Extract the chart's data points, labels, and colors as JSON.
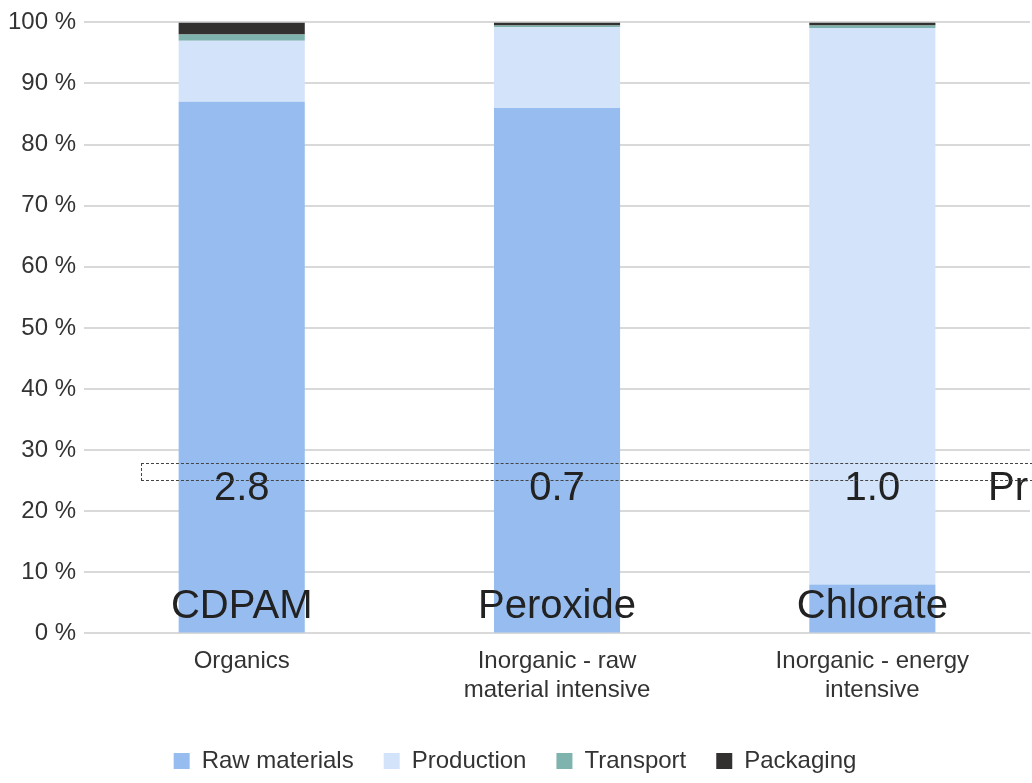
{
  "chart_data": {
    "type": "bar",
    "stacked": true,
    "categories": [
      "Organics",
      "Inorganic - raw material intensive",
      "Inorganic - energy intensive"
    ],
    "series": [
      {
        "name": "Raw materials",
        "color": "#97bdf0",
        "values": [
          87,
          86,
          8
        ]
      },
      {
        "name": "Production",
        "color": "#d3e3f9",
        "values": [
          10,
          13.2,
          91.1
        ]
      },
      {
        "name": "Transport",
        "color": "#7fb3ad",
        "values": [
          1,
          0.3,
          0.4
        ]
      },
      {
        "name": "Packaging",
        "color": "#333030",
        "values": [
          2,
          0.5,
          0.5
        ]
      }
    ],
    "ylim": [
      0,
      100
    ],
    "yticks": [
      {
        "value": 0,
        "label": "0 %"
      },
      {
        "value": 10,
        "label": "10 %"
      },
      {
        "value": 20,
        "label": "20 %"
      },
      {
        "value": 30,
        "label": "30 %"
      },
      {
        "value": 40,
        "label": "40 %"
      },
      {
        "value": 50,
        "label": "50 %"
      },
      {
        "value": 60,
        "label": "60 %"
      },
      {
        "value": 70,
        "label": "70 %"
      },
      {
        "value": 80,
        "label": "80 %"
      },
      {
        "value": 90,
        "label": "90 %"
      },
      {
        "value": 100,
        "label": "100 %"
      }
    ],
    "grid": "y",
    "legend": "bottom",
    "annotations": [
      "CDPAM",
      "Peroxide",
      "Chlorate",
      "2.8",
      "0.7",
      "1.0",
      "Pr"
    ]
  }
}
